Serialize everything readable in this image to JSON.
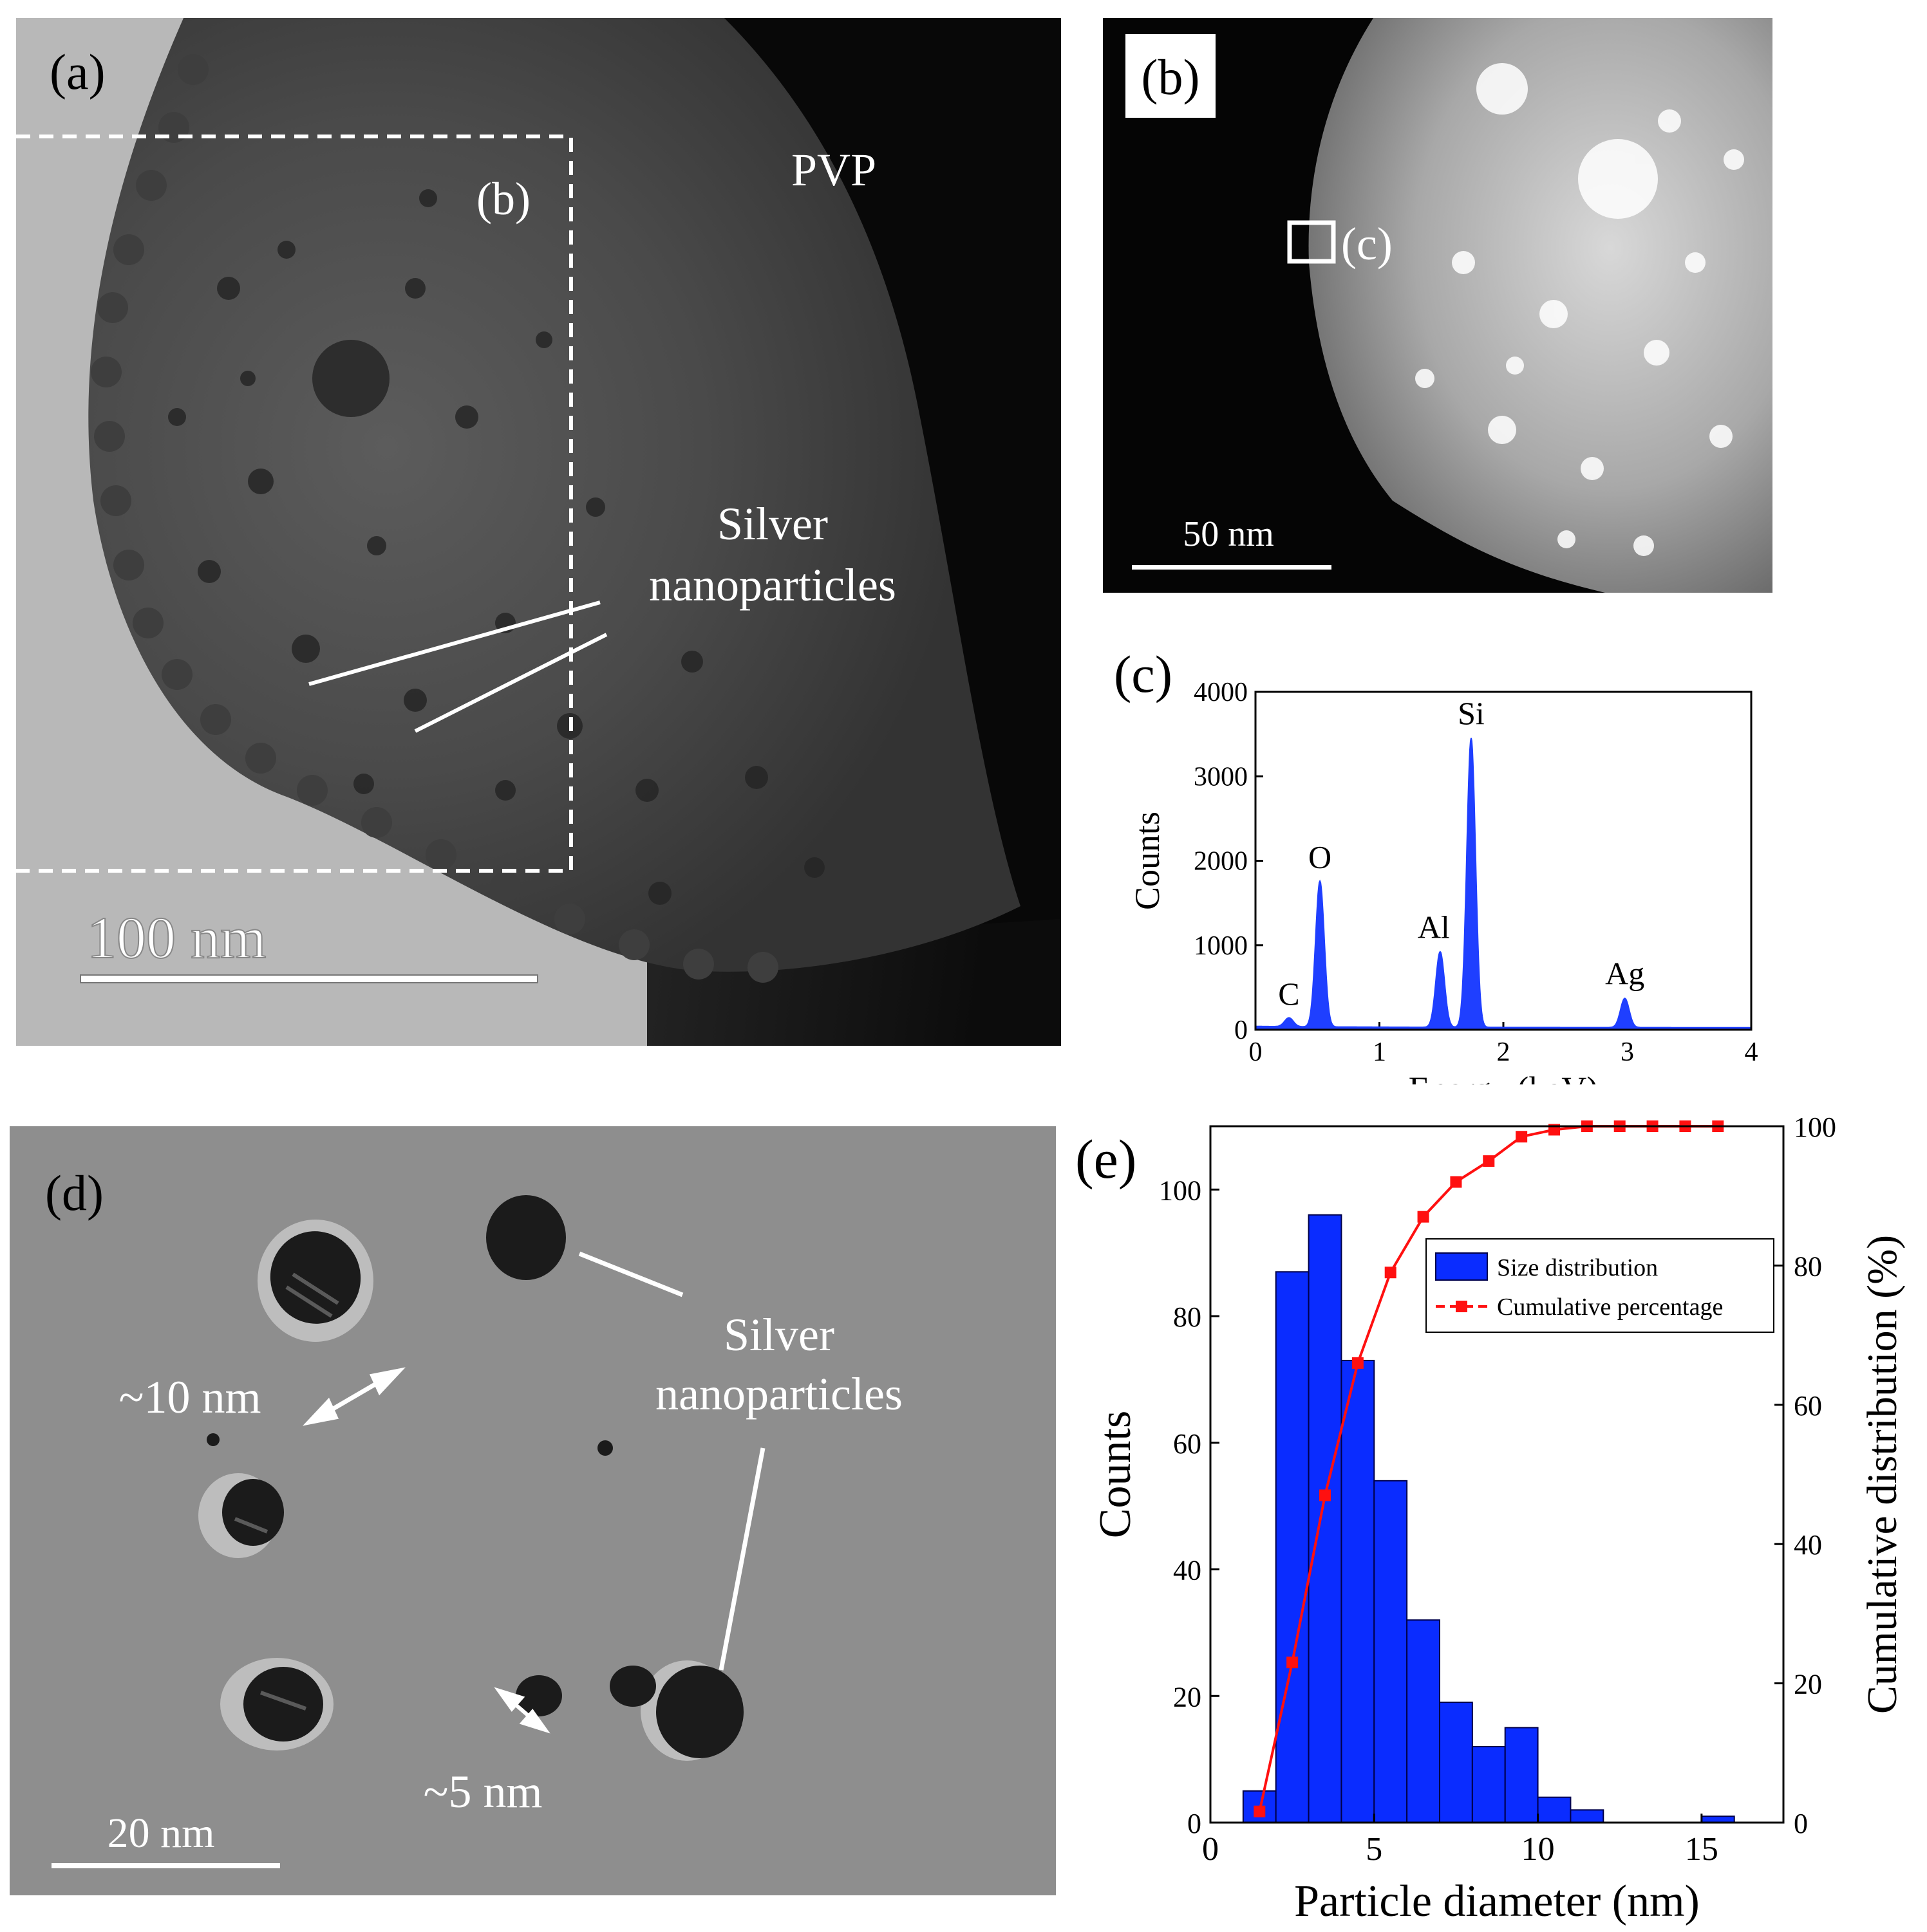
{
  "figure": {
    "panel_a": {
      "label": "(a)",
      "region_label": "(b)",
      "matrix_label": "PVP",
      "particle_label_line1": "Silver",
      "particle_label_line2": "nanoparticles",
      "scale_bar_text": "100 nm"
    },
    "panel_b": {
      "label": "(b)",
      "region_label": "(c)",
      "scale_bar_text": "50 nm"
    },
    "panel_d": {
      "label": "(d)",
      "particle_label_line1": "Silver",
      "particle_label_line2": "nanoparticles",
      "size_label_large": "~10 nm",
      "size_label_small": "~5 nm",
      "scale_bar_text": "20 nm"
    }
  },
  "chart_data": [
    {
      "panel_label": "(c)",
      "type": "line",
      "xlabel": "Energy (keV)",
      "ylabel": "Counts",
      "xlim": [
        0,
        4
      ],
      "ylim": [
        0,
        4000
      ],
      "xticks": [
        0,
        1,
        2,
        3,
        4
      ],
      "yticks": [
        0,
        1000,
        2000,
        3000,
        4000
      ],
      "peaks": [
        {
          "element": "C",
          "energy": 0.27,
          "counts": 130
        },
        {
          "element": "O",
          "energy": 0.52,
          "counts": 1750
        },
        {
          "element": "Al",
          "energy": 1.49,
          "counts": 920
        },
        {
          "element": "Si",
          "energy": 1.74,
          "counts": 3450
        },
        {
          "element": "Ag",
          "energy": 2.98,
          "counts": 370
        }
      ],
      "color": "#1f3fff"
    },
    {
      "panel_label": "(e)",
      "type": "bar",
      "xlabel": "Particle diameter (nm)",
      "ylabel": "Counts",
      "y2label": "Cumulative distribution (%)",
      "xlim": [
        0,
        17.5
      ],
      "ylim": [
        0,
        110
      ],
      "y2lim": [
        0,
        100
      ],
      "xticks": [
        0,
        5,
        10,
        15
      ],
      "yticks": [
        0,
        20,
        40,
        60,
        80,
        100
      ],
      "y2ticks": [
        0,
        20,
        40,
        60,
        80,
        100
      ],
      "bin_width": 1,
      "series": [
        {
          "name": "Size distribution",
          "type": "bar",
          "color": "#0a2cff",
          "x": [
            1.5,
            2.5,
            3.5,
            4.5,
            5.5,
            6.5,
            7.5,
            8.5,
            9.5,
            10.5,
            11.5,
            12.5,
            13.5,
            14.5,
            15.5
          ],
          "values": [
            5,
            87,
            96,
            73,
            54,
            32,
            19,
            12,
            15,
            4,
            2,
            0,
            0,
            0,
            1
          ]
        },
        {
          "name": "Cumulative percentage",
          "type": "line",
          "color": "#ff1010",
          "x": [
            1.5,
            2.5,
            3.5,
            4.5,
            5.5,
            6.5,
            7.5,
            8.5,
            9.5,
            10.5,
            11.5,
            12.5,
            13.5,
            14.5,
            15.5
          ],
          "values": [
            1.6,
            23,
            47,
            66,
            79,
            87,
            92,
            95,
            98.5,
            99.5,
            100,
            100,
            100,
            100,
            100
          ]
        }
      ],
      "legend_position": "top-right"
    }
  ]
}
